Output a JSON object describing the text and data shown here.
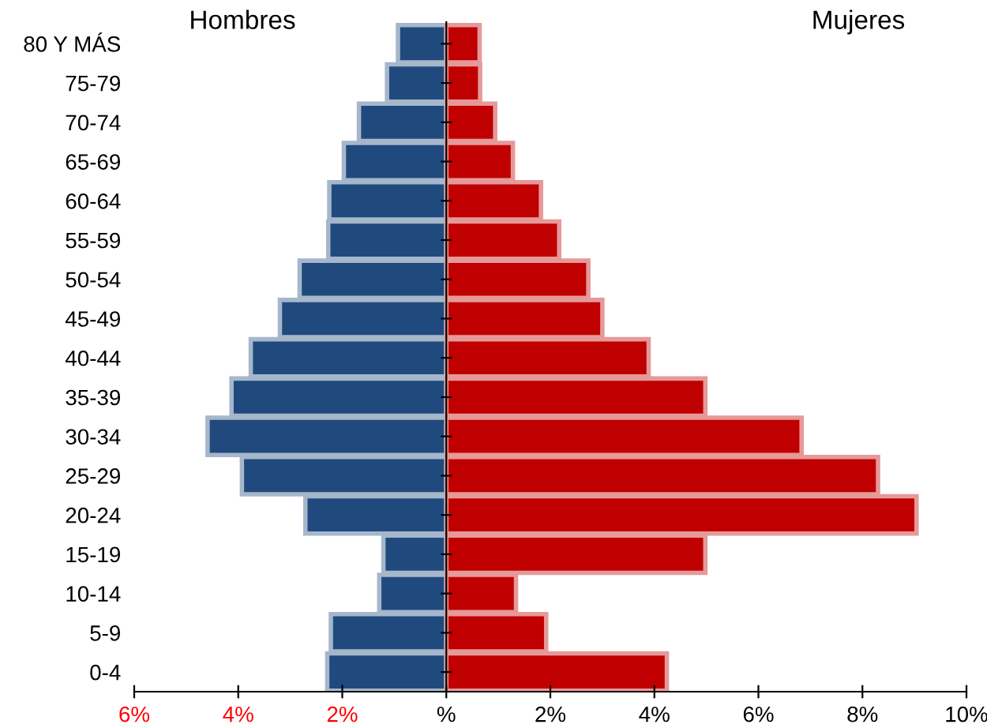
{
  "chart_data": {
    "type": "bar",
    "orientation": "horizontal",
    "stacked": true,
    "categories": [
      "80 Y MÁS",
      "75-79",
      "70-74",
      "65-69",
      "60-64",
      "55-59",
      "50-54",
      "45-49",
      "40-44",
      "35-39",
      "30-34",
      "25-29",
      "20-24",
      "15-19",
      "10-14",
      "5-9",
      "0-4"
    ],
    "series": [
      {
        "color": "#204a7e",
        "values": [
          -0.93,
          -1.14,
          -1.68,
          -1.97,
          -2.25,
          -2.27,
          -2.82,
          -3.2,
          -3.76,
          -4.13,
          -4.59,
          -3.93,
          -2.71,
          -1.21,
          -1.29,
          -2.22,
          -2.29
        ]
      },
      {
        "color": "#c00000",
        "values": [
          0.64,
          0.65,
          0.94,
          1.28,
          1.82,
          2.17,
          2.73,
          3.0,
          3.89,
          4.98,
          6.83,
          8.3,
          9.04,
          4.98,
          1.34,
          1.92,
          4.24
        ]
      }
    ],
    "annotations": [
      "Hombres",
      "Mujeres"
    ],
    "xlim": [
      -6,
      10
    ],
    "xticks": [
      {
        "value": -6,
        "label": "6%"
      },
      {
        "value": -4,
        "label": "4%"
      },
      {
        "value": -2,
        "label": "2%"
      },
      {
        "value": 0,
        "label": "%"
      },
      {
        "value": 2,
        "label": "2%"
      },
      {
        "value": 4,
        "label": "4%"
      },
      {
        "value": 6,
        "label": "6%"
      },
      {
        "value": 8,
        "label": "8%"
      },
      {
        "value": 10,
        "label": "10%"
      }
    ]
  }
}
